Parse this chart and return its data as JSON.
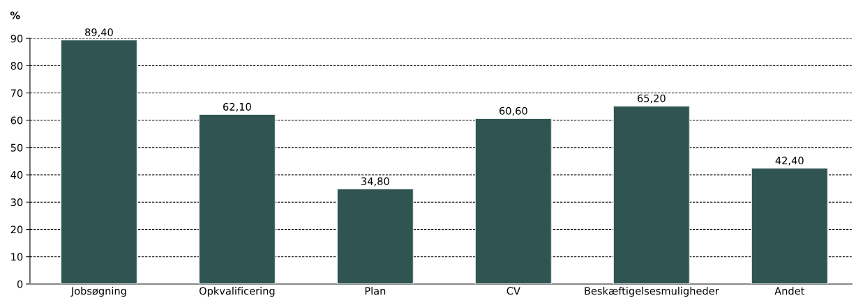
{
  "chart_data": {
    "type": "bar",
    "ylabel": "%",
    "categories": [
      "Jobsøgning",
      "Opkvalificering",
      "Plan",
      "CV",
      "Beskæftigelsesmuligheder",
      "Andet"
    ],
    "values": [
      89.4,
      62.1,
      34.8,
      60.6,
      65.2,
      42.4
    ],
    "value_labels": [
      "89,40",
      "62,10",
      "34,80",
      "60,60",
      "65,20",
      "42,40"
    ],
    "color": "#2f5451",
    "ylim": [
      0,
      90
    ],
    "yticks": [
      0,
      10,
      20,
      30,
      40,
      50,
      60,
      70,
      80,
      90
    ],
    "grid": "y",
    "legend": false
  }
}
